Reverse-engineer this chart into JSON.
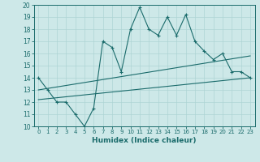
{
  "xlabel": "Humidex (Indice chaleur)",
  "ylabel": "",
  "xlim": [
    -0.5,
    23.5
  ],
  "ylim": [
    10,
    20
  ],
  "xticks": [
    0,
    1,
    2,
    3,
    4,
    5,
    6,
    7,
    8,
    9,
    10,
    11,
    12,
    13,
    14,
    15,
    16,
    17,
    18,
    19,
    20,
    21,
    22,
    23
  ],
  "yticks": [
    10,
    11,
    12,
    13,
    14,
    15,
    16,
    17,
    18,
    19,
    20
  ],
  "bg_color": "#cde8e8",
  "line_color": "#1a6b6b",
  "grid_color": "#aed4d4",
  "line1_x": [
    0,
    1,
    2,
    3,
    4,
    5,
    6,
    7,
    8,
    9,
    10,
    11,
    12,
    13,
    14,
    15,
    16,
    17,
    18,
    19,
    20,
    21,
    22,
    23
  ],
  "line1_y": [
    14,
    13,
    12,
    12,
    11,
    10,
    11.5,
    17,
    16.5,
    14.5,
    18,
    19.8,
    18,
    17.5,
    19,
    17.5,
    19.2,
    17,
    16.2,
    15.5,
    16,
    14.5,
    14.5,
    14
  ],
  "line2_x": [
    0,
    23
  ],
  "line2_y": [
    13.0,
    15.8
  ],
  "line3_x": [
    0,
    23
  ],
  "line3_y": [
    12.2,
    14.0
  ],
  "xlabel_fontsize": 6.5,
  "tick_fontsize": 5.0
}
